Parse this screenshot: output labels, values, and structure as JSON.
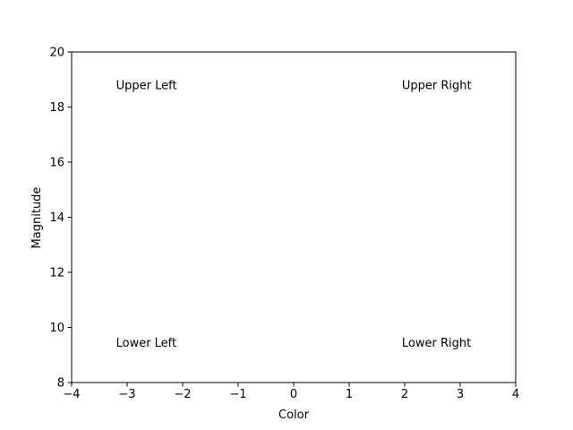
{
  "chart_data": {
    "type": "scatter",
    "title": "",
    "xlabel": "Color",
    "ylabel": "Magnitude",
    "xlim": [
      -4,
      4
    ],
    "ylim": [
      8,
      20
    ],
    "x_ticks": [
      -4,
      -3,
      -2,
      -1,
      0,
      1,
      2,
      3,
      4
    ],
    "x_tick_labels": [
      "−4",
      "−3",
      "−2",
      "−1",
      "0",
      "1",
      "2",
      "3",
      "4"
    ],
    "y_ticks": [
      8,
      10,
      12,
      14,
      16,
      18,
      20
    ],
    "y_tick_labels": [
      "8",
      "10",
      "12",
      "14",
      "16",
      "18",
      "20"
    ],
    "grid": false,
    "legend": "none",
    "series": [],
    "annotations": [
      {
        "text": "Upper Left",
        "x": -3.2,
        "y": 18.8
      },
      {
        "text": "Upper Right",
        "x": 1.95,
        "y": 18.8
      },
      {
        "text": "Lower Left",
        "x": -3.2,
        "y": 9.45
      },
      {
        "text": "Lower Right",
        "x": 1.95,
        "y": 9.45
      }
    ]
  }
}
